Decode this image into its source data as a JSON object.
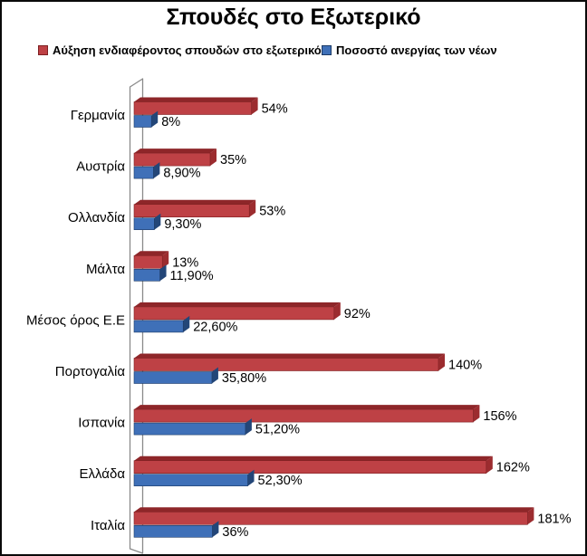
{
  "title": "Σπουδές στο Εξωτερικό",
  "legend": [
    {
      "label": "Αύξηση ενδιαφέροντος σπουδών στο εξωτερικό",
      "color": "#BE4145",
      "border": "#7E2022"
    },
    {
      "label": "Ποσοστό ανεργίας των νέων",
      "color": "#3F70B8",
      "border": "#1C3A66"
    }
  ],
  "chart_data": {
    "type": "bar",
    "style": "3d-horizontal-bar",
    "title": "Σπουδές στο Εξωτερικό",
    "categories": [
      "Γερμανία",
      "Αυστρία",
      "Ολλανδία",
      "Μάλτα",
      "Μέσος όρος Ε.Ε",
      "Πορτογαλία",
      "Ισπανία",
      "Ελλάδα",
      "Ιταλία"
    ],
    "series": [
      {
        "name": "Αύξηση ενδιαφέροντος σπουδών στο εξωτερικό",
        "color": "#BE4145",
        "top_color": "#8E2629",
        "cap_color": "#9C2C2F",
        "edge_color": "#7E2022",
        "values": [
          54,
          35,
          53,
          13,
          92,
          140,
          156,
          162,
          181
        ],
        "labels": [
          "54%",
          "35%",
          "53%",
          "13%",
          "92%",
          "140%",
          "156%",
          "162%",
          "181%"
        ]
      },
      {
        "name": "Ποσοστό ανεργίας των νέων",
        "color": "#3F70B8",
        "top_color": "#2A5294",
        "cap_color": "#234678",
        "edge_color": "#1C3A66",
        "values": [
          8,
          8.9,
          9.3,
          11.9,
          22.6,
          35.8,
          51.2,
          52.3,
          36
        ],
        "labels": [
          "8%",
          "8,90%",
          "9,30%",
          "11,90%",
          "22,60%",
          "35,80%",
          "51,20%",
          "52,30%",
          "36%"
        ]
      }
    ],
    "xlabel": "",
    "ylabel": "",
    "value_axis_visible": false,
    "implied_value_max": 200,
    "grid": false,
    "legend_position": "top",
    "wall_color": "#8A8A8A"
  }
}
